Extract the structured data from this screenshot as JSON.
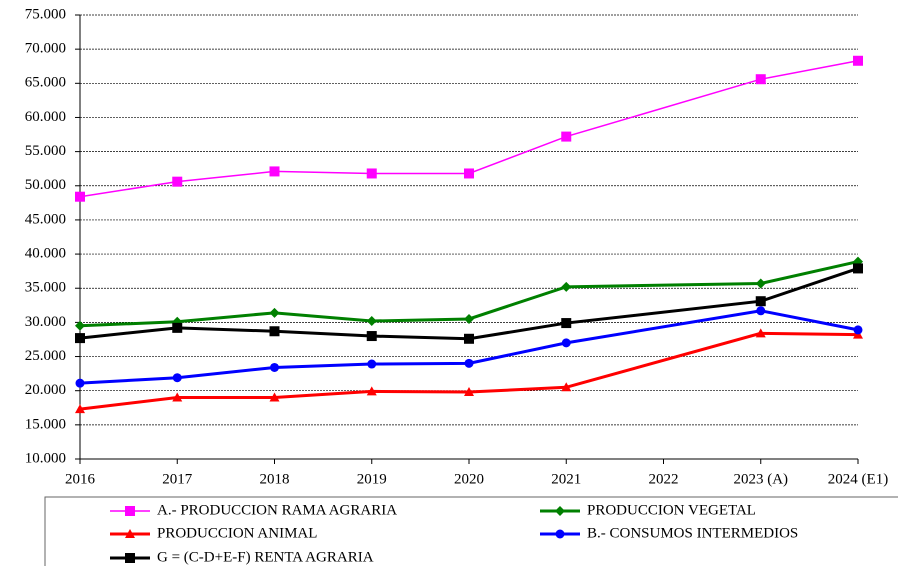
{
  "chart_data": {
    "type": "line",
    "x": [
      2016,
      2017,
      2018,
      2019,
      2020,
      2021,
      2023,
      2024
    ],
    "xlim": [
      2016,
      2024
    ],
    "xticks": [
      2016,
      2017,
      2018,
      2019,
      2020,
      2021,
      2022,
      {
        "value": 2023,
        "label": "2023 (A)"
      },
      {
        "value": 2024,
        "label": "2024 (E1)"
      }
    ],
    "ylim": [
      10000,
      75000
    ],
    "yticks": [
      {
        "value": 10000,
        "label": "10.000"
      },
      {
        "value": 15000,
        "label": "15.000"
      },
      {
        "value": 20000,
        "label": "20.000"
      },
      {
        "value": 25000,
        "label": "25.000"
      },
      {
        "value": 30000,
        "label": "30.000"
      },
      {
        "value": 35000,
        "label": "35.000"
      },
      {
        "value": 40000,
        "label": "40.000"
      },
      {
        "value": 45000,
        "label": "45.000"
      },
      {
        "value": 50000,
        "label": "50.000"
      },
      {
        "value": 55000,
        "label": "55.000"
      },
      {
        "value": 60000,
        "label": "60.000"
      },
      {
        "value": 65000,
        "label": "65.000"
      },
      {
        "value": 70000,
        "label": "70.000"
      },
      {
        "value": 75000,
        "label": "75.000"
      }
    ],
    "grid": true,
    "legend": "bottom",
    "series": [
      {
        "name": "A.- PRODUCCION RAMA AGRARIA",
        "color": "#ff00ff",
        "marker": "square",
        "values": [
          48400,
          50600,
          52100,
          51800,
          51800,
          57200,
          65600,
          68300
        ]
      },
      {
        "name": "PRODUCCION VEGETAL",
        "color": "#008000",
        "marker": "diamond",
        "values": [
          29500,
          30100,
          31400,
          30200,
          30500,
          35200,
          35700,
          38900
        ]
      },
      {
        "name": "PRODUCCION ANIMAL",
        "color": "#ff0000",
        "marker": "triangle",
        "values": [
          17300,
          19000,
          19000,
          19900,
          19800,
          20500,
          28400,
          28200
        ]
      },
      {
        "name": "B.- CONSUMOS INTERMEDIOS",
        "color": "#0000ff",
        "marker": "circle",
        "values": [
          21100,
          21900,
          23400,
          23900,
          24000,
          27000,
          31700,
          28900
        ]
      },
      {
        "name": "G = (C-D+E-F)  RENTA AGRARIA",
        "color": "#000000",
        "marker": "square",
        "values": [
          27700,
          29200,
          28700,
          28000,
          27600,
          29900,
          33100,
          37900
        ]
      }
    ]
  }
}
